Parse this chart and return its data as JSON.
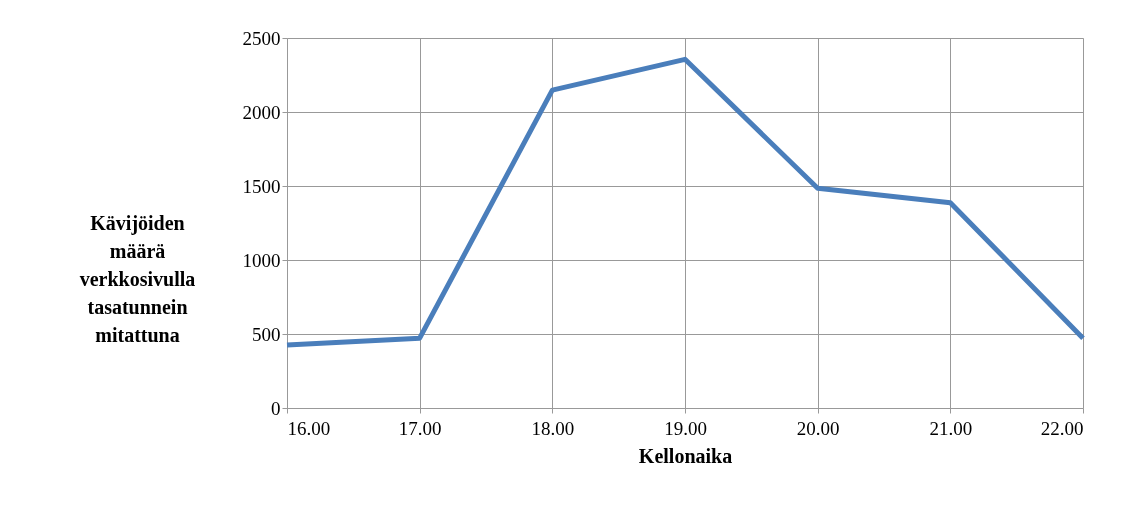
{
  "chart_data": {
    "type": "line",
    "xlabel": "Kellonaika",
    "ylabel": "Kävijöiden\nmäärä\nverkkosivulla\ntasatunnein\nmitattuna",
    "x": [
      16,
      17,
      18,
      19,
      20,
      21,
      22
    ],
    "series": [
      {
        "color": "#4a7ebb",
        "values": [
          425,
          472,
          2148,
          2356,
          1485,
          1387,
          472
        ]
      }
    ],
    "xlim": [
      16,
      22
    ],
    "xticks": [
      {
        "value": 16,
        "label": "16.00"
      },
      {
        "value": 17,
        "label": "17.00"
      },
      {
        "value": 18,
        "label": "18.00"
      },
      {
        "value": 19,
        "label": "19.00"
      },
      {
        "value": 20,
        "label": "20.00"
      },
      {
        "value": 21,
        "label": "21.00"
      },
      {
        "value": 22,
        "label": "22.00"
      }
    ],
    "ylim": [
      0,
      2500
    ],
    "yticks": [
      0,
      500,
      1000,
      1500,
      2000,
      2500
    ],
    "grid": true,
    "marker": "none",
    "line_style": "solid"
  }
}
